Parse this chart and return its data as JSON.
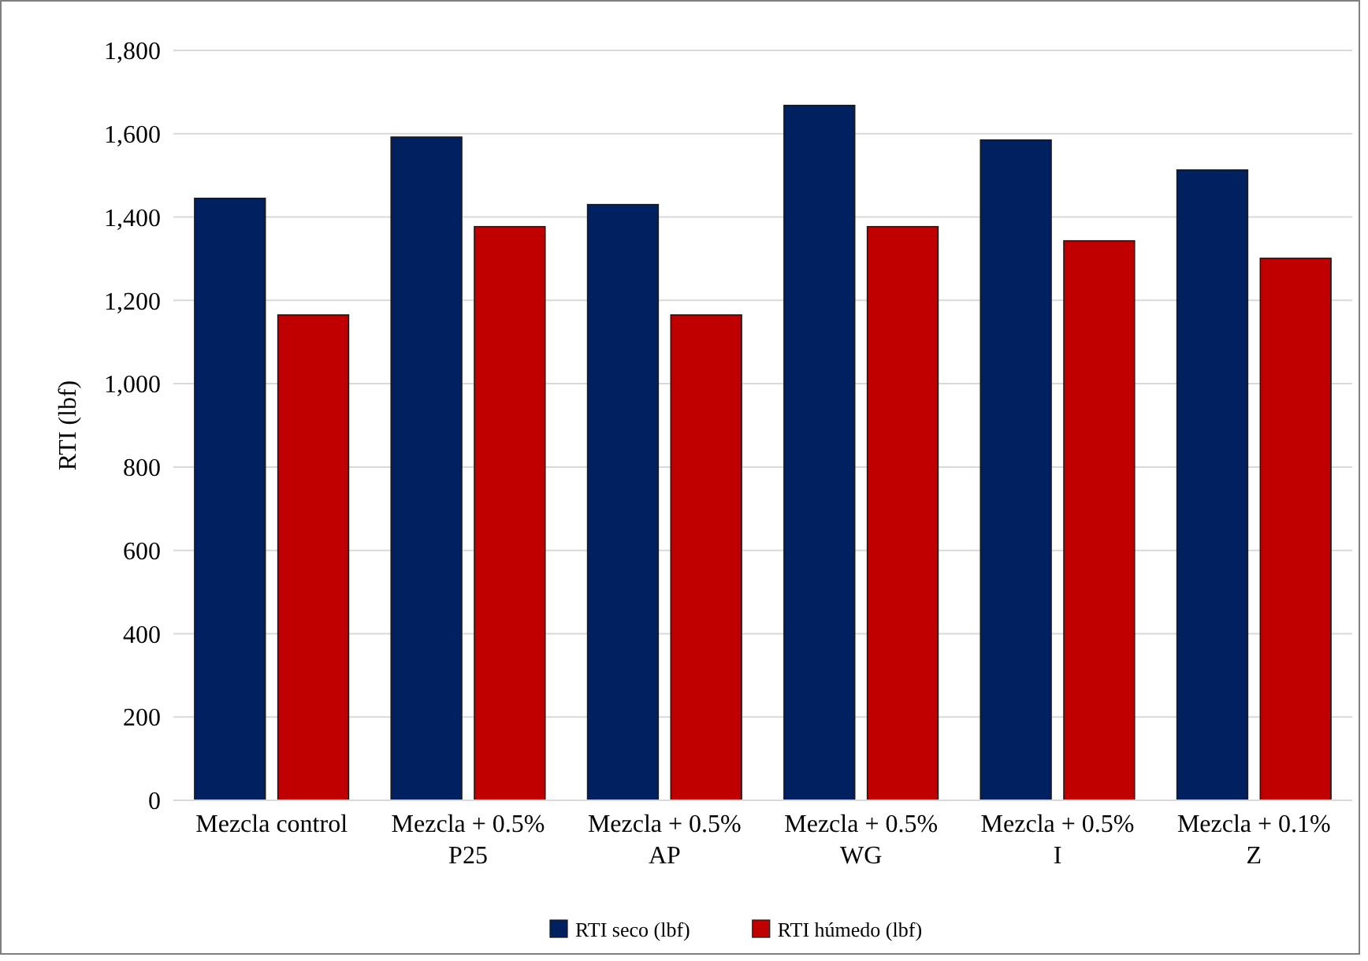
{
  "chart_data": {
    "type": "bar",
    "ylabel": "RTI (lbf)",
    "categories": [
      "Mezcla control",
      "Mezcla + 0.5% P25",
      "Mezcla + 0.5% AP",
      "Mezcla + 0.5% WG",
      "Mezcla + 0.5% I",
      "Mezcla + 0.1% Z"
    ],
    "series": [
      {
        "name": "RTI seco (lbf)",
        "color": "#002060",
        "values": [
          1445,
          1592,
          1430,
          1668,
          1585,
          1513
        ]
      },
      {
        "name": "RTI húmedo (lbf)",
        "color": "#c00000",
        "values": [
          1165,
          1377,
          1165,
          1377,
          1343,
          1301
        ]
      }
    ],
    "ylim": [
      0,
      1800
    ],
    "yticks": [
      0,
      200,
      400,
      600,
      800,
      {
        "value": 1000,
        "label": "1,000"
      },
      {
        "value": 1200,
        "label": "1,200"
      },
      {
        "value": 1400,
        "label": "1,400"
      },
      {
        "value": 1600,
        "label": "1,600"
      },
      {
        "value": 1800,
        "label": "1,800"
      }
    ],
    "grid": "y",
    "legend": "bottom"
  }
}
